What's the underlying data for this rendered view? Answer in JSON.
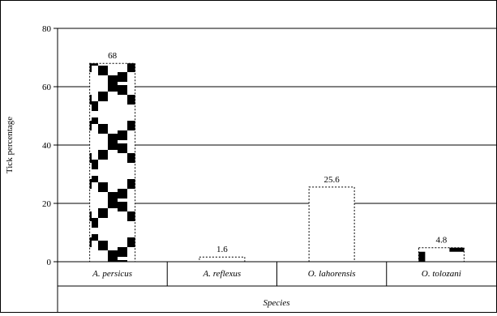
{
  "chart_data": {
    "type": "bar",
    "title": "",
    "xlabel": "Species",
    "ylabel": "Tick percentage",
    "ylim": [
      0,
      80
    ],
    "yticks": [
      0,
      20,
      40,
      60,
      80
    ],
    "grid": true,
    "categories": [
      "A. persicus",
      "A. reflexus",
      "O. lahorensis",
      "O. tolozani"
    ],
    "values": [
      68,
      1.6,
      25.6,
      4.8
    ],
    "value_labels": [
      "68",
      "1.6",
      "25.6",
      "4.8"
    ],
    "bar_fills": [
      "checker",
      "blank",
      "blank",
      "checker"
    ],
    "colors": {
      "ink": "#000000",
      "background": "#ffffff",
      "gridline": "#000000"
    }
  }
}
